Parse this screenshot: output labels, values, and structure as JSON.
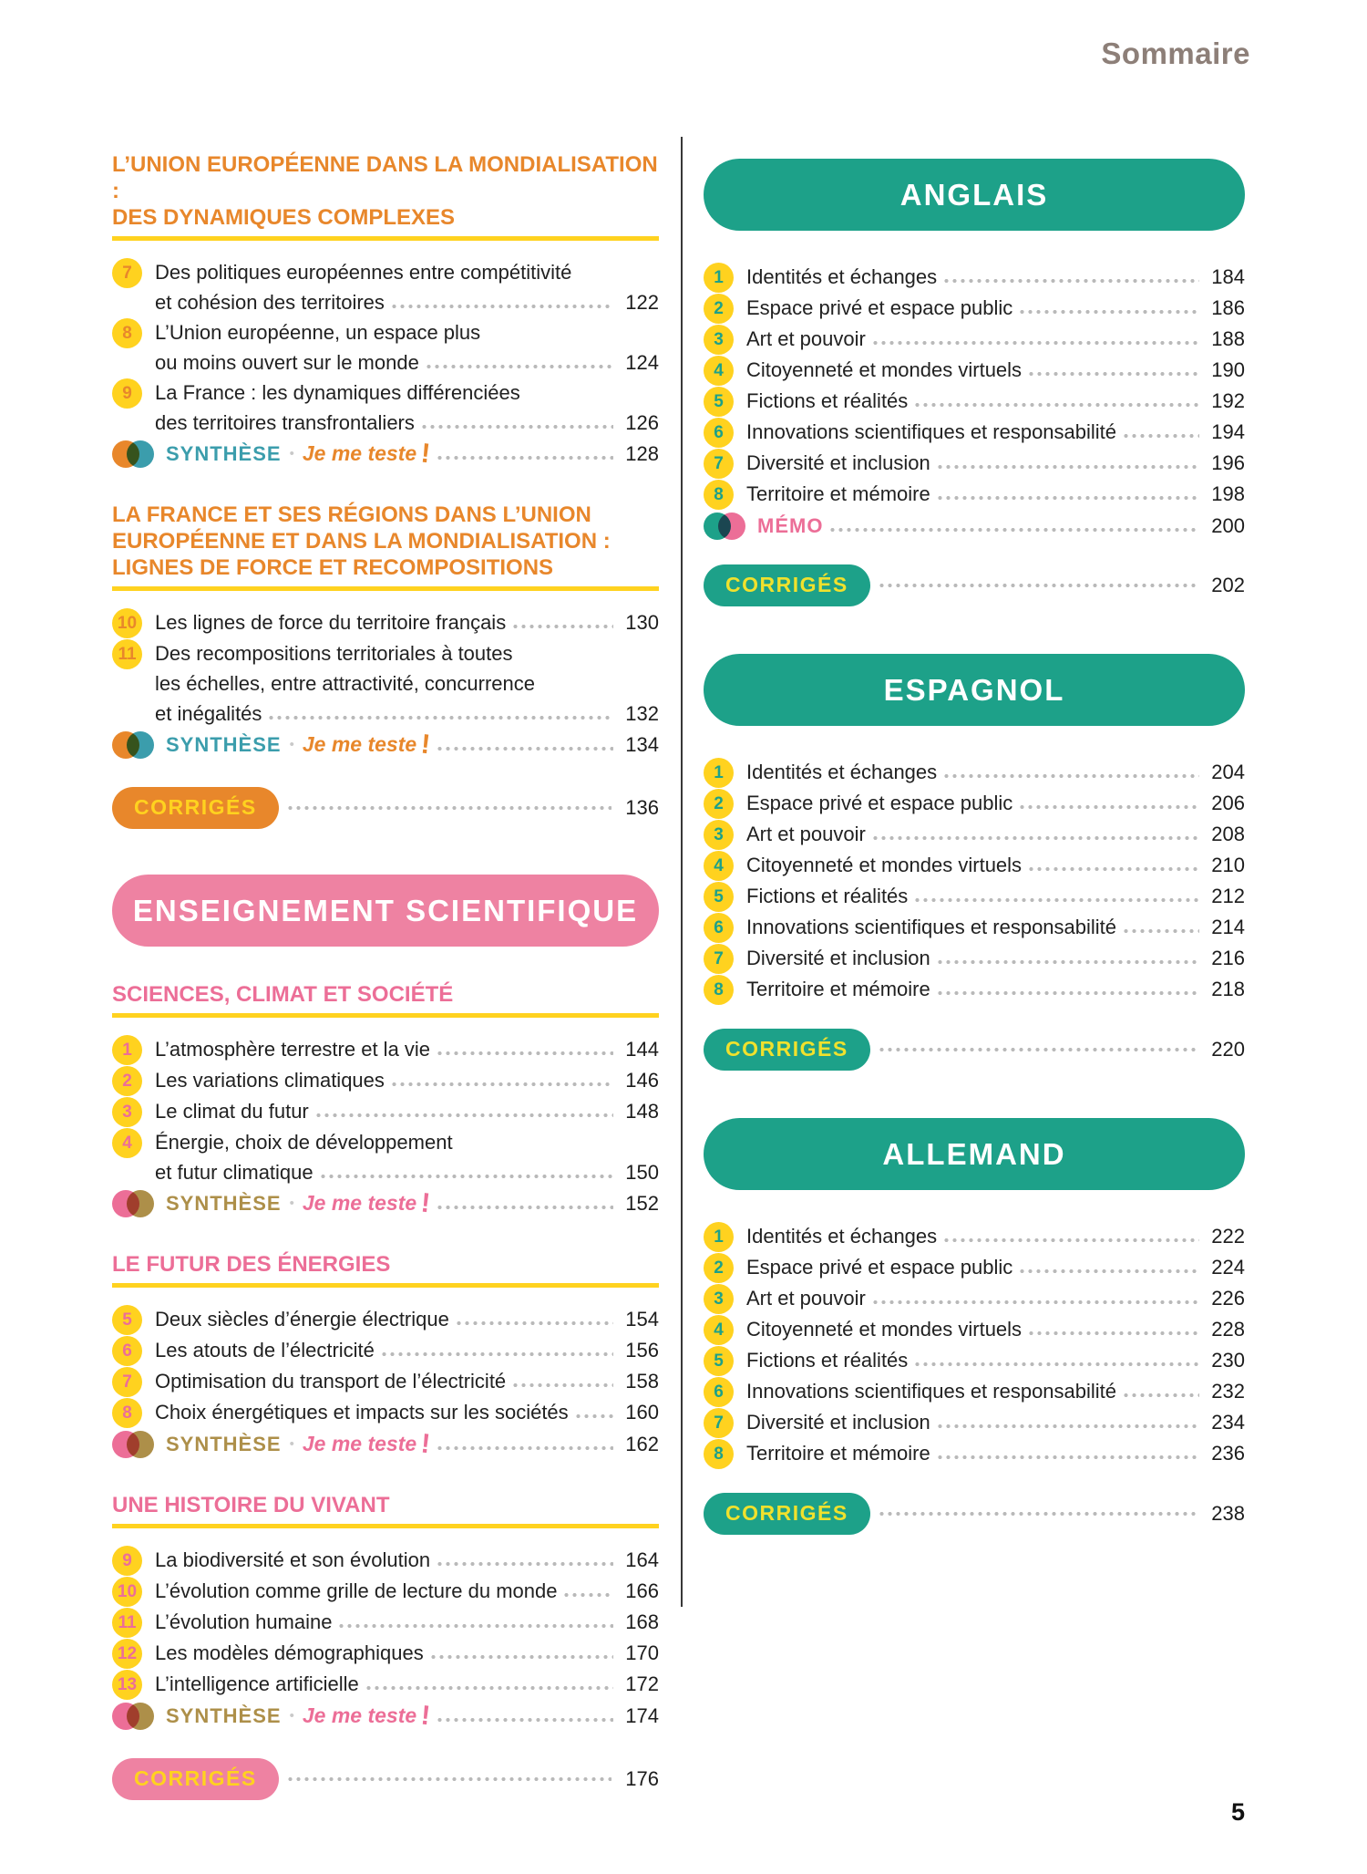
{
  "page": {
    "header_label": "Sommaire",
    "folio": "5"
  },
  "colors": {
    "orange": "#e8872b",
    "yellow": "#ffd21f",
    "pink": "#ee82a2",
    "pinkDeep": "#ec6e97",
    "teal": "#1da189",
    "tealBlue": "#3b9dac",
    "olive": "#ad8f49",
    "taupe": "#8d7f78",
    "text": "#212121",
    "dots": "#b9b9b9",
    "pillYellow": "#f0e12d"
  },
  "synthese": {
    "label": "SYNTHÈSE",
    "separator": "•",
    "test_label": "Je me teste",
    "bang": "!"
  },
  "columns": {
    "left": {
      "blocks": [
        {
          "type": "subheading",
          "theme": "geo",
          "lines": [
            "L’UNION EUROPÉENNE DANS LA MONDIALISATION :",
            "DES DYNAMIQUES COMPLEXES"
          ]
        },
        {
          "type": "item",
          "theme": "geo",
          "num": "7",
          "lines": [
            "Des politiques européennes entre compétitivité",
            "et cohésion des territoires"
          ],
          "page": "122"
        },
        {
          "type": "item",
          "theme": "geo",
          "num": "8",
          "lines": [
            "L’Union européenne, un espace plus",
            "ou moins ouvert sur le monde"
          ],
          "page": "124"
        },
        {
          "type": "item",
          "theme": "geo",
          "num": "9",
          "lines": [
            "La France : les dynamiques différenciées",
            "des territoires transfrontaliers"
          ],
          "page": "126"
        },
        {
          "type": "synthese",
          "theme": "geo",
          "page": "128"
        },
        {
          "type": "subheading",
          "theme": "geo",
          "lines": [
            "LA FRANCE ET SES RÉGIONS DANS L’UNION",
            "EUROPÉENNE ET DANS LA MONDIALISATION :",
            "LIGNES DE FORCE ET RECOMPOSITIONS"
          ]
        },
        {
          "type": "item",
          "theme": "geo",
          "num": "10",
          "lines": [
            "Les lignes de force du territoire français"
          ],
          "page": "130"
        },
        {
          "type": "item",
          "theme": "geo",
          "num": "11",
          "lines": [
            "Des recompositions territoriales à toutes",
            "les échelles, entre attractivité, concurrence",
            "et inégalités"
          ],
          "page": "132"
        },
        {
          "type": "synthese",
          "theme": "geo",
          "page": "134"
        },
        {
          "type": "corriges",
          "theme": "geo",
          "label": "CORRIGÉS",
          "page": "136"
        },
        {
          "type": "banner",
          "theme": "sci",
          "text": "ENSEIGNEMENT SCIENTIFIQUE"
        },
        {
          "type": "subheading",
          "theme": "sci",
          "lines": [
            "SCIENCES, CLIMAT ET SOCIÉTÉ"
          ]
        },
        {
          "type": "item",
          "theme": "sci",
          "num": "1",
          "lines": [
            "L’atmosphère terrestre et la vie"
          ],
          "page": "144"
        },
        {
          "type": "item",
          "theme": "sci",
          "num": "2",
          "lines": [
            "Les variations climatiques"
          ],
          "page": "146"
        },
        {
          "type": "item",
          "theme": "sci",
          "num": "3",
          "lines": [
            "Le climat du futur"
          ],
          "page": "148"
        },
        {
          "type": "item",
          "theme": "sci",
          "num": "4",
          "lines": [
            "Énergie, choix de développement",
            "et futur climatique"
          ],
          "page": "150"
        },
        {
          "type": "synthese",
          "theme": "sci",
          "page": "152"
        },
        {
          "type": "subheading",
          "theme": "sci",
          "lines": [
            "LE FUTUR DES ÉNERGIES"
          ]
        },
        {
          "type": "item",
          "theme": "sci",
          "num": "5",
          "lines": [
            "Deux siècles d’énergie électrique"
          ],
          "page": "154"
        },
        {
          "type": "item",
          "theme": "sci",
          "num": "6",
          "lines": [
            "Les atouts de l’électricité"
          ],
          "page": "156"
        },
        {
          "type": "item",
          "theme": "sci",
          "num": "7",
          "lines": [
            "Optimisation du transport de l’électricité"
          ],
          "page": "158"
        },
        {
          "type": "item",
          "theme": "sci",
          "num": "8",
          "lines": [
            "Choix énergétiques et impacts sur les sociétés"
          ],
          "page": "160"
        },
        {
          "type": "synthese",
          "theme": "sci",
          "page": "162"
        },
        {
          "type": "subheading",
          "theme": "sci",
          "lines": [
            "UNE HISTOIRE DU VIVANT"
          ]
        },
        {
          "type": "item",
          "theme": "sci",
          "num": "9",
          "lines": [
            "La biodiversité et son évolution"
          ],
          "page": "164"
        },
        {
          "type": "item",
          "theme": "sci",
          "num": "10",
          "lines": [
            "L’évolution comme grille de lecture du monde"
          ],
          "page": "166"
        },
        {
          "type": "item",
          "theme": "sci",
          "num": "11",
          "lines": [
            "L’évolution humaine"
          ],
          "page": "168"
        },
        {
          "type": "item",
          "theme": "sci",
          "num": "12",
          "lines": [
            "Les modèles démographiques"
          ],
          "page": "170"
        },
        {
          "type": "item",
          "theme": "sci",
          "num": "13",
          "lines": [
            "L’intelligence artificielle"
          ],
          "page": "172"
        },
        {
          "type": "synthese",
          "theme": "sci",
          "page": "174"
        },
        {
          "type": "corriges",
          "theme": "sci",
          "label": "CORRIGÉS",
          "page": "176"
        }
      ]
    },
    "right": {
      "blocks": [
        {
          "type": "banner",
          "theme": "lang",
          "text": "ANGLAIS"
        },
        {
          "type": "item",
          "theme": "lang",
          "num": "1",
          "lines": [
            "Identités et échanges"
          ],
          "page": "184"
        },
        {
          "type": "item",
          "theme": "lang",
          "num": "2",
          "lines": [
            "Espace privé et espace public"
          ],
          "page": "186"
        },
        {
          "type": "item",
          "theme": "lang",
          "num": "3",
          "lines": [
            "Art et pouvoir"
          ],
          "page": "188"
        },
        {
          "type": "item",
          "theme": "lang",
          "num": "4",
          "lines": [
            "Citoyenneté et mondes virtuels"
          ],
          "page": "190"
        },
        {
          "type": "item",
          "theme": "lang",
          "num": "5",
          "lines": [
            "Fictions et réalités"
          ],
          "page": "192"
        },
        {
          "type": "item",
          "theme": "lang",
          "num": "6",
          "lines": [
            "Innovations scientifiques et responsabilité"
          ],
          "page": "194"
        },
        {
          "type": "item",
          "theme": "lang",
          "num": "7",
          "lines": [
            "Diversité et inclusion"
          ],
          "page": "196"
        },
        {
          "type": "item",
          "theme": "lang",
          "num": "8",
          "lines": [
            "Territoire et mémoire"
          ],
          "page": "198"
        },
        {
          "type": "memo",
          "theme": "lang",
          "label": "MÉMO",
          "page": "200"
        },
        {
          "type": "corriges",
          "theme": "lang",
          "label": "CORRIGÉS",
          "page": "202"
        },
        {
          "type": "banner",
          "theme": "lang",
          "text": "ESPAGNOL"
        },
        {
          "type": "item",
          "theme": "lang",
          "num": "1",
          "lines": [
            "Identités et échanges"
          ],
          "page": "204"
        },
        {
          "type": "item",
          "theme": "lang",
          "num": "2",
          "lines": [
            "Espace privé et espace public"
          ],
          "page": "206"
        },
        {
          "type": "item",
          "theme": "lang",
          "num": "3",
          "lines": [
            "Art et pouvoir"
          ],
          "page": "208"
        },
        {
          "type": "item",
          "theme": "lang",
          "num": "4",
          "lines": [
            "Citoyenneté et mondes virtuels"
          ],
          "page": "210"
        },
        {
          "type": "item",
          "theme": "lang",
          "num": "5",
          "lines": [
            "Fictions et réalités"
          ],
          "page": "212"
        },
        {
          "type": "item",
          "theme": "lang",
          "num": "6",
          "lines": [
            "Innovations scientifiques et responsabilité"
          ],
          "page": "214"
        },
        {
          "type": "item",
          "theme": "lang",
          "num": "7",
          "lines": [
            "Diversité et inclusion"
          ],
          "page": "216"
        },
        {
          "type": "item",
          "theme": "lang",
          "num": "8",
          "lines": [
            "Territoire et mémoire"
          ],
          "page": "218"
        },
        {
          "type": "corriges",
          "theme": "lang",
          "label": "CORRIGÉS",
          "page": "220"
        },
        {
          "type": "banner",
          "theme": "lang",
          "text": "ALLEMAND"
        },
        {
          "type": "item",
          "theme": "lang",
          "num": "1",
          "lines": [
            "Identités et échanges"
          ],
          "page": "222"
        },
        {
          "type": "item",
          "theme": "lang",
          "num": "2",
          "lines": [
            "Espace privé et espace public"
          ],
          "page": "224"
        },
        {
          "type": "item",
          "theme": "lang",
          "num": "3",
          "lines": [
            "Art et pouvoir"
          ],
          "page": "226"
        },
        {
          "type": "item",
          "theme": "lang",
          "num": "4",
          "lines": [
            "Citoyenneté et mondes virtuels"
          ],
          "page": "228"
        },
        {
          "type": "item",
          "theme": "lang",
          "num": "5",
          "lines": [
            "Fictions et réalités"
          ],
          "page": "230"
        },
        {
          "type": "item",
          "theme": "lang",
          "num": "6",
          "lines": [
            "Innovations scientifiques et responsabilité"
          ],
          "page": "232"
        },
        {
          "type": "item",
          "theme": "lang",
          "num": "7",
          "lines": [
            "Diversité et inclusion"
          ],
          "page": "234"
        },
        {
          "type": "item",
          "theme": "lang",
          "num": "8",
          "lines": [
            "Territoire et mémoire"
          ],
          "page": "236"
        },
        {
          "type": "corriges",
          "theme": "lang",
          "label": "CORRIGÉS",
          "page": "238"
        }
      ]
    }
  }
}
